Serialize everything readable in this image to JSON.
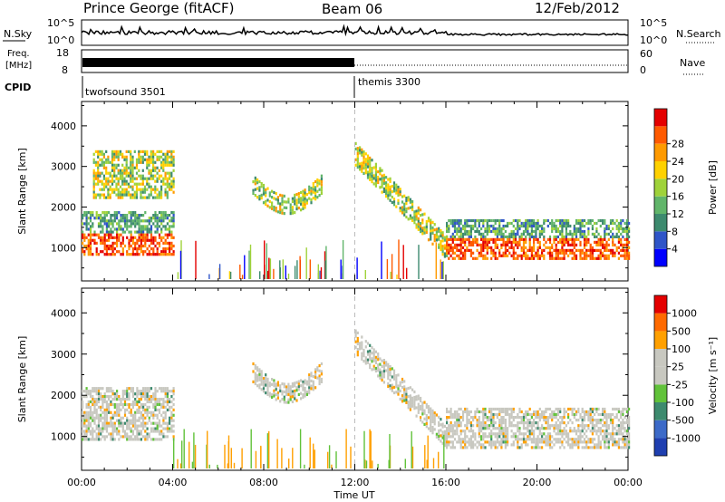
{
  "header": {
    "title": "Prince George (fitACF)",
    "beam": "Beam 06",
    "date": "12/Feb/2012"
  },
  "strip_panels": {
    "nsky": {
      "label": "N.Sky",
      "ticks": [
        "10^5",
        "10^0"
      ],
      "right_ticks": [
        "10^5",
        "10^0"
      ],
      "right_label": "N.Search"
    },
    "freq": {
      "label_line1": "Freq.",
      "label_line2": "[MHz]",
      "ticks": [
        "18",
        "8"
      ],
      "right_ticks": [
        "60",
        "0"
      ],
      "right_label": "Nave"
    },
    "cpid": {
      "label": "CPID",
      "programs": [
        {
          "name": "twofsound 3501",
          "start_hour": 0,
          "end_hour": 12
        },
        {
          "name": "themis 3300",
          "start_hour": 12,
          "end_hour": 24
        }
      ]
    }
  },
  "chart_data": [
    {
      "type": "heatmap",
      "title": "",
      "xlabel": "Time UT",
      "ylabel": "Slant Range [km]",
      "xlim": [
        0,
        24
      ],
      "ylim": [
        180,
        4600
      ],
      "yticks": [
        1000,
        2000,
        3000,
        4000
      ],
      "colorbar": {
        "label": "Power [dB]",
        "ticks": [
          "4",
          "8",
          "12",
          "16",
          "20",
          "24",
          "28"
        ],
        "colors": [
          "#0000ff",
          "#2f55c8",
          "#3d8a6e",
          "#61b56a",
          "#9fd23a",
          "#ffd100",
          "#ff9a00",
          "#ff5a00",
          "#e40000"
        ]
      },
      "regions": [
        {
          "feature": "near-range band",
          "t_start": 0.0,
          "t_end": 4.0,
          "range_low": 800,
          "range_high": 1900,
          "level": "strong"
        },
        {
          "feature": "high-range patches",
          "t_start": 0.5,
          "t_end": 4.0,
          "range_low": 2200,
          "range_high": 3400,
          "level": "moderate"
        },
        {
          "feature": "arc",
          "t_start": 7.5,
          "t_end": 10.5,
          "range_low": 1800,
          "range_high": 2700,
          "level": "moderate"
        },
        {
          "feature": "descending echo",
          "t_start": 12.0,
          "t_end": 16.0,
          "range_low": 1000,
          "range_high": 3400,
          "level": "moderate"
        },
        {
          "feature": "near-range band",
          "t_start": 16.0,
          "t_end": 24.0,
          "range_low": 700,
          "range_high": 1700,
          "level": "strong"
        }
      ]
    },
    {
      "type": "heatmap",
      "title": "",
      "xlabel": "Time UT",
      "ylabel": "Slant Range [km]",
      "xlim": [
        0,
        24
      ],
      "ylim": [
        180,
        4600
      ],
      "yticks": [
        1000,
        2000,
        3000,
        4000
      ],
      "xticks": [
        "00:00",
        "04:00",
        "08:00",
        "12:00",
        "16:00",
        "20:00",
        "00:00"
      ],
      "colorbar": {
        "label": "Velocity [m s⁻¹]",
        "ticks": [
          "1000",
          "500",
          "100",
          "25",
          "-25",
          "-100",
          "-500",
          "-1000"
        ],
        "colors": [
          "#1f3fb0",
          "#3c6ac8",
          "#3d8a6e",
          "#61c23a",
          "#c8c8c0",
          "#c8c8c0",
          "#ffa000",
          "#ff6a00",
          "#e40000"
        ]
      },
      "regions": [
        {
          "feature": "ground scatter",
          "t_start": 0.0,
          "t_end": 4.0,
          "range_low": 900,
          "range_high": 2200,
          "level": "near zero"
        },
        {
          "feature": "arc",
          "t_start": 7.5,
          "t_end": 10.5,
          "range_low": 1800,
          "range_high": 2800,
          "level": "near zero"
        },
        {
          "feature": "descending echo",
          "t_start": 12.0,
          "t_end": 16.0,
          "range_low": 1000,
          "range_high": 3400,
          "level": "near zero"
        },
        {
          "feature": "ground scatter",
          "t_start": 16.0,
          "t_end": 24.0,
          "range_low": 700,
          "range_high": 1700,
          "level": "near zero"
        }
      ]
    }
  ]
}
